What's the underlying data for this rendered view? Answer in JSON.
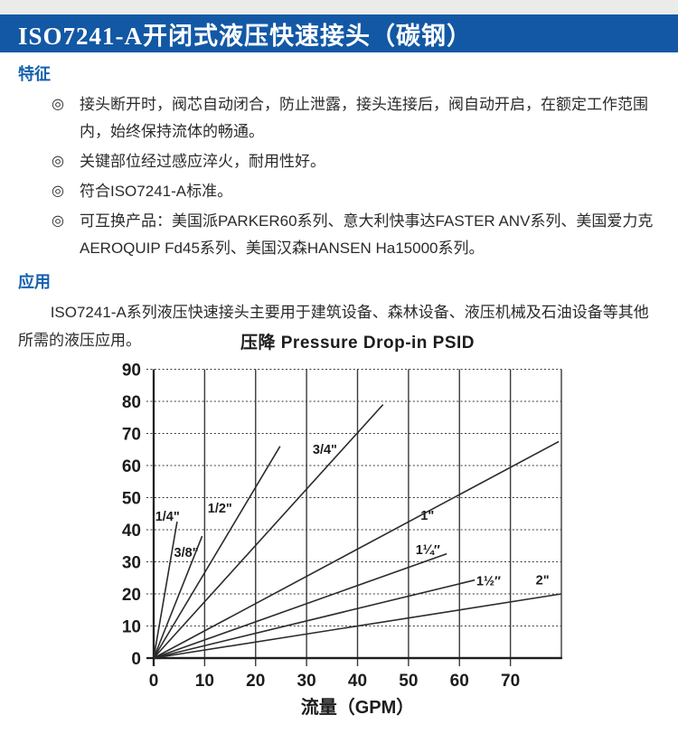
{
  "page": {
    "accent_blue": "#1358a5",
    "heading_blue": "#1560ae",
    "ink": "#2b2b2b"
  },
  "header": {
    "title": "ISO7241-A开闭式液压快速接头（碳钢）"
  },
  "features": {
    "heading": "特征",
    "bullet": "◎",
    "items": [
      "接头断开时，阀芯自动闭合，防止泄露，接头连接后，阀自动开启，在额定工作范围内，始终保持流体的畅通。",
      "关键部位经过感应淬火，耐用性好。",
      "符合ISO7241-A标准。",
      "可互换产品：美国派PARKER60系列、意大利快事达FASTER ANV系列、美国爱力克AEROQUIP Fd45系列、美国汉森HANSEN Ha15000系列。"
    ]
  },
  "application": {
    "heading": "应用",
    "paragraph": "ISO7241-A系列液压快速接头主要用于建筑设备、森林设备、液压机械及石油设备等其他所需的液压应用。"
  },
  "chart_data": {
    "type": "line",
    "title": "压降 Pressure Drop-in PSID",
    "xlabel": "流量（GPM）",
    "ylabel": "",
    "x_unit": "GPM",
    "y_unit": "PSID",
    "xlim": [
      0,
      80
    ],
    "ylim": [
      0,
      90
    ],
    "x_ticks": [
      0,
      10,
      20,
      30,
      40,
      50,
      60,
      70
    ],
    "y_ticks": [
      0,
      10,
      20,
      30,
      40,
      50,
      60,
      70,
      80,
      90
    ],
    "grid": true,
    "legend": "inline-labels",
    "series": [
      {
        "name": "1/4\"",
        "points": [
          [
            0,
            0
          ],
          [
            4.6,
            42.5
          ]
        ],
        "label_pos": [
          2.7,
          44.2
        ]
      },
      {
        "name": "3/8\"",
        "points": [
          [
            0,
            0
          ],
          [
            9.5,
            38
          ]
        ],
        "label_pos": [
          6.4,
          33
        ]
      },
      {
        "name": "1/2\"",
        "points": [
          [
            0,
            0
          ],
          [
            24.8,
            66
          ]
        ],
        "label_pos": [
          13,
          46.8
        ]
      },
      {
        "name": "3/4\"",
        "points": [
          [
            0,
            0
          ],
          [
            45,
            79
          ]
        ],
        "label_pos": [
          33.6,
          65.1
        ]
      },
      {
        "name": "1\"",
        "points": [
          [
            0,
            0
          ],
          [
            79.5,
            67.5
          ]
        ],
        "label_pos": [
          53.7,
          44.5
        ]
      },
      {
        "name": "1¼″",
        "points": [
          [
            0,
            0
          ],
          [
            57.5,
            32.5
          ]
        ],
        "label_pos": [
          53.8,
          33.8
        ]
      },
      {
        "name": "1½″",
        "points": [
          [
            0,
            0
          ],
          [
            63,
            24.3
          ]
        ],
        "label_pos": [
          65.7,
          24.1
        ]
      },
      {
        "name": "2\"",
        "points": [
          [
            0,
            0
          ],
          [
            80,
            20
          ]
        ],
        "label_pos": [
          76.3,
          24.4
        ]
      }
    ]
  }
}
